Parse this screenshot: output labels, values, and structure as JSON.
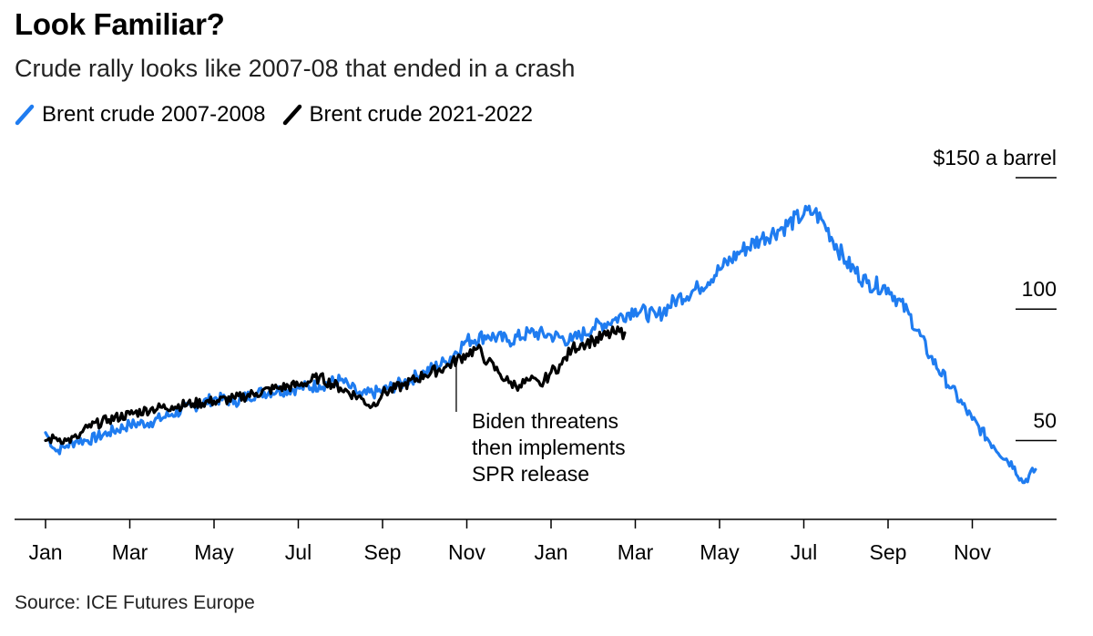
{
  "title": "Look Familiar?",
  "subtitle": "Crude rally looks like 2007-08 that ended in a crash",
  "source": "Source: ICE Futures Europe",
  "colors": {
    "series_2007": "#1f7cf0",
    "series_2021": "#000000",
    "axis": "#000000"
  },
  "legend": [
    {
      "label": "Brent crude 2007-2008",
      "color": "#1f7cf0"
    },
    {
      "label": "Brent crude 2021-2022",
      "color": "#000000"
    }
  ],
  "chart_data": {
    "type": "line",
    "title": "Look Familiar?",
    "subtitle": "Crude rally looks like 2007-08 that ended in a crash",
    "x_unit": "months from start",
    "x_tick_labels": [
      "Jan",
      "Mar",
      "May",
      "Jul",
      "Sep",
      "Nov",
      "Jan",
      "Mar",
      "May",
      "Jul",
      "Sep",
      "Nov"
    ],
    "x_tick_positions": [
      0,
      2,
      4,
      6,
      8,
      10,
      12,
      14,
      16,
      18,
      20,
      22
    ],
    "xlim": [
      0,
      24
    ],
    "ylim": [
      20,
      150
    ],
    "y_ticks": [
      {
        "value": 150,
        "label": "$150 a barrel"
      },
      {
        "value": 100,
        "label": "100"
      },
      {
        "value": 50,
        "label": "50"
      }
    ],
    "grid": false,
    "legend_position": "top-left",
    "series": [
      {
        "name": "Brent crude 2007-2008",
        "x": [
          0,
          0.25,
          0.5,
          0.75,
          1,
          1.5,
          2,
          2.5,
          3,
          3.5,
          4,
          4.5,
          5,
          5.5,
          6,
          6.5,
          7,
          7.25,
          7.5,
          8,
          8.5,
          9,
          9.5,
          10,
          10.5,
          11,
          11.5,
          12,
          12.5,
          13,
          13.5,
          14,
          14.5,
          15,
          15.5,
          16,
          16.5,
          17,
          17.5,
          18,
          18.25,
          18.5,
          19,
          19.5,
          20,
          20.5,
          21,
          21.5,
          22,
          22.5,
          23,
          23.2,
          23.5
        ],
        "y": [
          53,
          46,
          48,
          50,
          50,
          53,
          56,
          57,
          60,
          63,
          66,
          65,
          68,
          69,
          70,
          71,
          73,
          70,
          67,
          69,
          72,
          76,
          80,
          88,
          90,
          88,
          91,
          90,
          88,
          93,
          96,
          100,
          97,
          104,
          108,
          115,
          122,
          127,
          131,
          136,
          137,
          132,
          118,
          110,
          108,
          98,
          82,
          70,
          58,
          48,
          40,
          34,
          39
        ]
      },
      {
        "name": "Brent crude 2021-2022",
        "x": [
          0,
          0.25,
          0.5,
          0.75,
          1,
          1.5,
          2,
          2.5,
          3,
          3.5,
          4,
          4.5,
          5,
          5.5,
          6,
          6.5,
          7,
          7.5,
          7.75,
          8,
          8.5,
          9,
          9.5,
          10,
          10.25,
          10.5,
          10.75,
          11,
          11.25,
          11.5,
          11.75,
          12,
          12.25,
          12.5,
          12.75,
          13,
          13.5,
          13.75
        ],
        "y": [
          50,
          51,
          50,
          51,
          55,
          58,
          60,
          62,
          63,
          64,
          65,
          66,
          68,
          70,
          71,
          74,
          70,
          66,
          63,
          68,
          71,
          75,
          78,
          83,
          85,
          80,
          76,
          72,
          71,
          73,
          71,
          76,
          79,
          85,
          87,
          88,
          91,
          91
        ]
      }
    ],
    "annotations": [
      {
        "x": 9.75,
        "text": [
          "Biden threatens",
          "then implements",
          "SPR release"
        ]
      }
    ]
  }
}
